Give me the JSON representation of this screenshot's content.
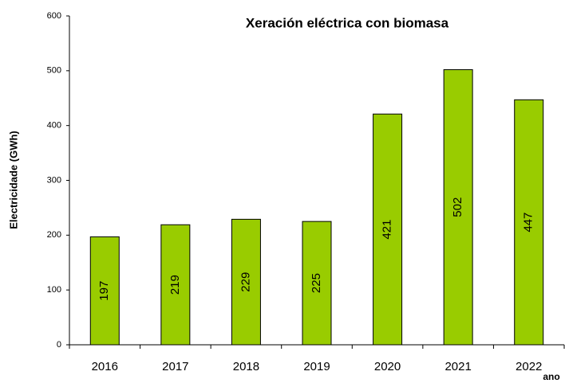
{
  "chart_data": {
    "type": "bar",
    "title": "Xeración eléctrica con biomasa",
    "y_label": "Electricidade (GWh)",
    "x_label": "ano",
    "categories": [
      "2016",
      "2017",
      "2018",
      "2019",
      "2020",
      "2021",
      "2022"
    ],
    "values": [
      197,
      219,
      229,
      225,
      421,
      502,
      447
    ],
    "color": "#99cc00",
    "ylim": [
      0,
      600
    ],
    "yticks": [
      0,
      100,
      200,
      300,
      400,
      500,
      600
    ],
    "grid": false
  }
}
